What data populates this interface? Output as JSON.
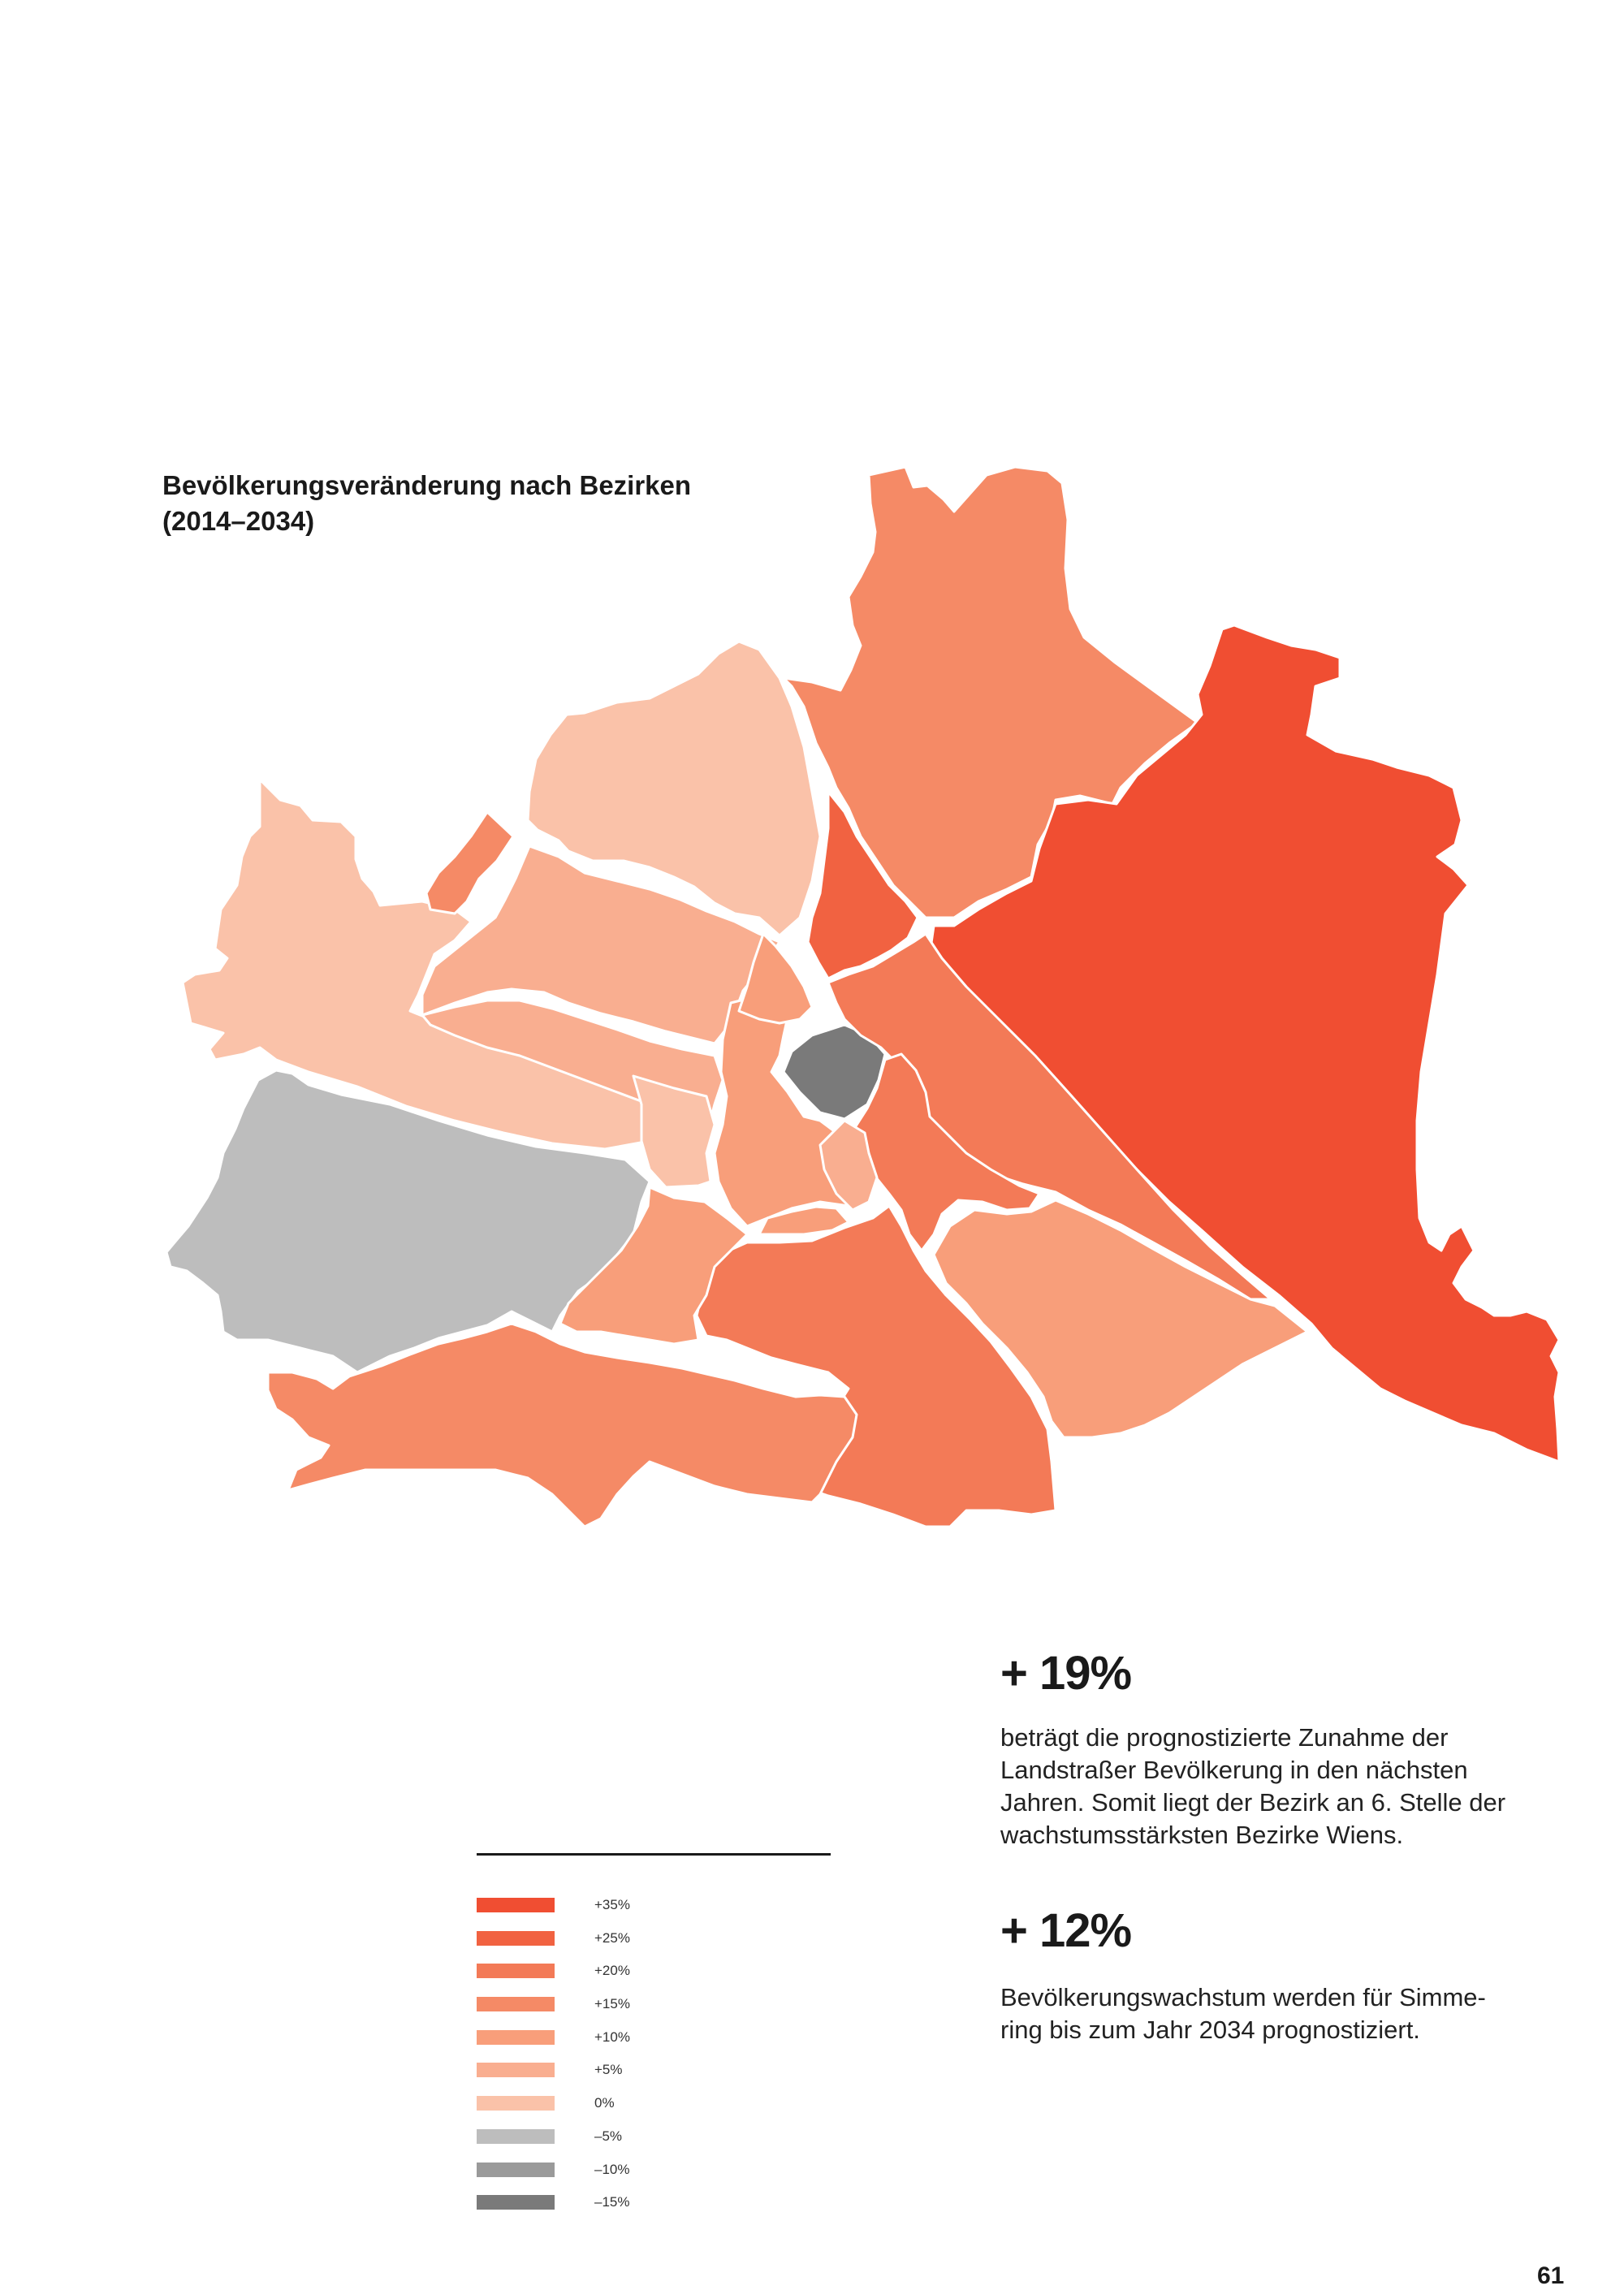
{
  "title": {
    "line1": "Bevölkerungsveränderung nach Bezirken",
    "line2": "(2014–2034)"
  },
  "legend": [
    {
      "label": "+35%",
      "color": "#f04e32"
    },
    {
      "label": "+25%",
      "color": "#f16241"
    },
    {
      "label": "+20%",
      "color": "#f37a57"
    },
    {
      "label": "+15%",
      "color": "#f58a66"
    },
    {
      "label": "+10%",
      "color": "#f89e7a"
    },
    {
      "label": "+5%",
      "color": "#f9ae90"
    },
    {
      "label": "0%",
      "color": "#fac2a9"
    },
    {
      "label": "–5%",
      "color": "#bdbdbd"
    },
    {
      "label": "–10%",
      "color": "#9a9a9a"
    },
    {
      "label": "–15%",
      "color": "#7a7a7a"
    }
  ],
  "stats": [
    {
      "value": "+ 19%",
      "text": [
        "beträgt die prognostizierte Zunahme der",
        "Landstraßer Bevölkerung in den nächsten",
        "Jahren. Somit liegt der Bezirk an 6. Stelle der",
        "wachstumsstärksten Bezirke Wiens."
      ]
    },
    {
      "value": "+ 12%",
      "text": [
        "Bevölkerungswachstum werden für Simme-",
        "ring bis zum Jahr 2034 prognostiziert."
      ]
    }
  ],
  "page_number": "61"
}
